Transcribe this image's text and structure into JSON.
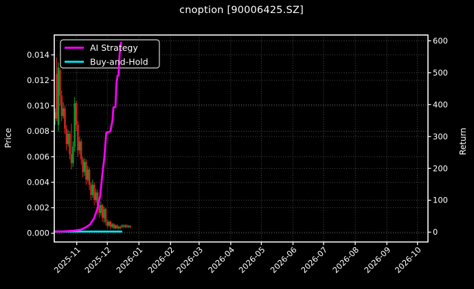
{
  "title": "cnoption [90006425.SZ]",
  "colors": {
    "background": "#000000",
    "spine": "#ffffff",
    "grid": "#5a5a5a",
    "tick_text": "#ffffff",
    "ai_strategy": "#ff00ff",
    "buy_and_hold": "#00e5ee",
    "candle_up": "#00a02a",
    "candle_down": "#dd2222",
    "legend_border": "#d9d9d9",
    "legend_fill": "#000000"
  },
  "legend": {
    "items": [
      {
        "label": "AI Strategy",
        "color": "#ff00ff"
      },
      {
        "label": "Buy-and-Hold",
        "color": "#00e5ee"
      }
    ]
  },
  "chart_data": {
    "type": "candlestick+line",
    "title": "cnoption [90006425.SZ]",
    "ylabel_left": "Price",
    "ylabel_right": "Return",
    "grid": true,
    "x_start_date": "2025-10-10",
    "x_range_days": [
      0,
      366.3
    ],
    "x_tick_days": [
      22,
      52,
      83,
      114,
      142,
      173,
      203,
      234,
      264,
      295,
      326,
      356
    ],
    "x_tick_labels": [
      "2025-11",
      "2025-12",
      "2026-01",
      "2026-02",
      "2026-03",
      "2026-04",
      "2026-05",
      "2026-06",
      "2026-07",
      "2026-08",
      "2026-09",
      "2026-10"
    ],
    "ylim_left": [
      -0.00069,
      0.015558
    ],
    "yticks_left": [
      0.0,
      0.002,
      0.004,
      0.006,
      0.008,
      0.01,
      0.012,
      0.014
    ],
    "ytick_labels_left": [
      "0.000",
      "0.002",
      "0.004",
      "0.006",
      "0.008",
      "0.010",
      "0.012",
      "0.014"
    ],
    "ylim_right": [
      -30.8,
      618.2
    ],
    "yticks_right": [
      0,
      100,
      200,
      300,
      400,
      500,
      600
    ],
    "ytick_labels_right": [
      "0",
      "100",
      "200",
      "300",
      "400",
      "500",
      "600"
    ],
    "candles": {
      "up_color": "#00a02a",
      "down_color": "#dd2222",
      "columns": [
        "day",
        "open",
        "high",
        "low",
        "close"
      ],
      "data": [
        [
          0.0,
          0.009,
          0.0098,
          0.0085,
          0.0095
        ],
        [
          1.6,
          0.0125,
          0.0138,
          0.0088,
          0.009
        ],
        [
          3.2,
          0.0085,
          0.0134,
          0.008,
          0.013
        ],
        [
          4.8,
          0.0128,
          0.013,
          0.01,
          0.0108
        ],
        [
          6.4,
          0.0108,
          0.0112,
          0.0088,
          0.0092
        ],
        [
          8.0,
          0.0092,
          0.0103,
          0.009,
          0.0098
        ],
        [
          9.6,
          0.0098,
          0.01,
          0.0078,
          0.0082
        ],
        [
          11.2,
          0.0082,
          0.0085,
          0.0065,
          0.007
        ],
        [
          12.8,
          0.007,
          0.0081,
          0.0068,
          0.0078
        ],
        [
          14.4,
          0.0078,
          0.008,
          0.0058,
          0.0062
        ],
        [
          16.0,
          0.0062,
          0.0086,
          0.005,
          0.0055
        ],
        [
          17.6,
          0.0055,
          0.0072,
          0.0052,
          0.0068
        ],
        [
          19.2,
          0.0068,
          0.0107,
          0.0064,
          0.0102
        ],
        [
          20.8,
          0.0102,
          0.0104,
          0.008,
          0.0085
        ],
        [
          22.4,
          0.0085,
          0.0088,
          0.006,
          0.0065
        ],
        [
          24.0,
          0.0065,
          0.0076,
          0.0062,
          0.0072
        ],
        [
          25.6,
          0.0072,
          0.0074,
          0.0054,
          0.0058
        ],
        [
          27.2,
          0.0058,
          0.006,
          0.0044,
          0.0048
        ],
        [
          28.8,
          0.0048,
          0.0059,
          0.0045,
          0.0056
        ],
        [
          30.4,
          0.0056,
          0.0058,
          0.0038,
          0.0042
        ],
        [
          32.0,
          0.0042,
          0.0053,
          0.004,
          0.005
        ],
        [
          33.6,
          0.005,
          0.0052,
          0.0034,
          0.0038
        ],
        [
          35.2,
          0.0038,
          0.004,
          0.0026,
          0.003
        ],
        [
          36.8,
          0.003,
          0.0042,
          0.0028,
          0.0038
        ],
        [
          38.4,
          0.0038,
          0.004,
          0.0022,
          0.0026
        ],
        [
          40.0,
          0.0026,
          0.0035,
          0.0024,
          0.0032
        ],
        [
          41.6,
          0.0032,
          0.0034,
          0.0018,
          0.0022
        ],
        [
          43.2,
          0.0022,
          0.0024,
          0.0012,
          0.0016
        ],
        [
          44.8,
          0.0016,
          0.0025,
          0.0014,
          0.0022
        ],
        [
          46.4,
          0.0022,
          0.0023,
          0.0009,
          0.0012
        ],
        [
          48.0,
          0.0012,
          0.0021,
          0.0008,
          0.0019
        ],
        [
          49.6,
          0.0019,
          0.002,
          0.0006,
          0.0009
        ],
        [
          51.2,
          0.0009,
          0.0011,
          0.0004,
          0.0006
        ],
        [
          52.8,
          0.0006,
          0.001,
          0.0005,
          0.0009
        ],
        [
          54.4,
          0.0009,
          0.001,
          0.0003,
          0.0005
        ],
        [
          56.0,
          0.0005,
          0.0008,
          0.0004,
          0.0007
        ],
        [
          57.6,
          0.0007,
          0.0008,
          0.0003,
          0.0004
        ],
        [
          59.2,
          0.0004,
          0.0007,
          0.0003,
          0.0006
        ],
        [
          60.8,
          0.0006,
          0.0007,
          0.0003,
          0.0004
        ],
        [
          62.4,
          0.0004,
          0.0006,
          0.0003,
          0.0005
        ],
        [
          64.0,
          0.0005,
          0.0006,
          0.0003,
          0.0004
        ],
        [
          65.6,
          0.0005,
          0.0007,
          0.0004,
          0.0006
        ],
        [
          67.2,
          0.0006,
          0.0007,
          0.0004,
          0.0005
        ],
        [
          68.8,
          0.0005,
          0.0007,
          0.0004,
          0.0006
        ],
        [
          70.4,
          0.0006,
          0.0007,
          0.0004,
          0.0005
        ],
        [
          72.0,
          0.0005,
          0.0006,
          0.0004,
          0.0006
        ],
        [
          73.6,
          0.0006,
          0.0006,
          0.0004,
          0.0005
        ]
      ]
    },
    "series": [
      {
        "name": "AI Strategy",
        "color": "#ff00ff",
        "axis": "right",
        "points": [
          [
            0,
            2
          ],
          [
            6,
            2
          ],
          [
            12,
            3
          ],
          [
            18,
            4
          ],
          [
            22,
            6
          ],
          [
            26,
            8
          ],
          [
            31,
            15
          ],
          [
            35,
            24
          ],
          [
            39,
            43
          ],
          [
            42,
            71
          ],
          [
            45,
            114
          ],
          [
            47,
            178
          ],
          [
            49,
            232
          ],
          [
            51,
            312
          ],
          [
            55,
            316
          ],
          [
            57,
            350
          ],
          [
            58,
            391
          ],
          [
            60,
            393
          ],
          [
            61,
            469
          ],
          [
            62,
            490
          ],
          [
            63,
            492
          ],
          [
            64,
            555
          ],
          [
            65.5,
            594
          ]
        ]
      },
      {
        "name": "Buy-and-Hold",
        "color": "#00e5ee",
        "axis": "right",
        "points": [
          [
            0,
            2
          ],
          [
            66.5,
            2
          ]
        ]
      }
    ]
  }
}
